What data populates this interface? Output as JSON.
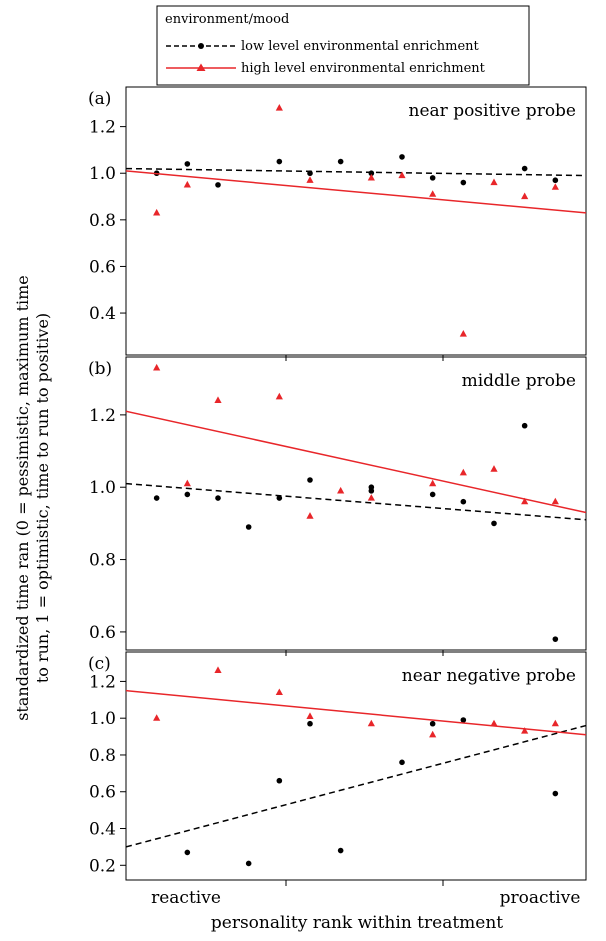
{
  "legend": {
    "title": "environment/mood",
    "entries": [
      {
        "label": "low level environmental enrichment",
        "color": "#000000",
        "marker": "circle",
        "line": "dashed"
      },
      {
        "label": "high level environmental enrichment",
        "color": "#e8262a",
        "marker": "triangle",
        "line": "solid"
      }
    ]
  },
  "ylabel_lines": [
    "standardized time ran (0 = pessimistic, maximum time",
    "to run, 1 = optimistic, time to run to positive)"
  ],
  "xlabel": "personality rank within treatment",
  "x_tick_labels": {
    "left": "reactive",
    "right": "proactive"
  },
  "chart_data": [
    {
      "type": "scatter",
      "panel": "(a)",
      "title": "near positive probe",
      "xlim": [
        0,
        15
      ],
      "ylim": [
        0.22,
        1.37
      ],
      "yticks": [
        0.4,
        0.6,
        0.8,
        1.0,
        1.2
      ],
      "grid": false,
      "series": [
        {
          "name": "low level environmental enrichment",
          "x": [
            1,
            2,
            3,
            5,
            6,
            7,
            8,
            9,
            10,
            11,
            13,
            14
          ],
          "y": [
            1.0,
            1.04,
            0.95,
            1.05,
            1.0,
            1.05,
            1.0,
            1.07,
            0.98,
            0.96,
            1.02,
            0.97
          ],
          "trend": [
            1.02,
            0.99
          ]
        },
        {
          "name": "high level environmental enrichment",
          "x": [
            1,
            2,
            5,
            6,
            8,
            9,
            10,
            11,
            12,
            13,
            14
          ],
          "y": [
            0.83,
            0.95,
            1.28,
            0.97,
            0.98,
            0.99,
            0.91,
            0.31,
            0.96,
            0.9,
            0.94
          ],
          "trend": [
            1.01,
            0.83
          ]
        }
      ]
    },
    {
      "type": "scatter",
      "panel": "(b)",
      "title": "middle probe",
      "xlim": [
        0,
        15
      ],
      "ylim": [
        0.55,
        1.36
      ],
      "yticks": [
        0.6,
        0.8,
        1.0,
        1.2
      ],
      "grid": false,
      "series": [
        {
          "name": "low level environmental enrichment",
          "x": [
            1,
            2,
            3,
            4,
            5,
            6,
            8,
            8,
            10,
            11,
            12,
            13,
            14
          ],
          "y": [
            0.97,
            0.98,
            0.97,
            0.89,
            0.97,
            1.02,
            1.0,
            0.99,
            0.98,
            0.96,
            0.9,
            1.17,
            0.58
          ],
          "trend": [
            1.01,
            0.91
          ]
        },
        {
          "name": "high level environmental enrichment",
          "x": [
            1,
            2,
            3,
            5,
            6,
            7,
            8,
            10,
            11,
            12,
            13,
            14
          ],
          "y": [
            1.33,
            1.01,
            1.24,
            1.25,
            0.92,
            0.99,
            0.97,
            1.01,
            1.04,
            1.05,
            0.96,
            0.96
          ],
          "trend": [
            1.21,
            0.93
          ]
        }
      ]
    },
    {
      "type": "scatter",
      "panel": "(c)",
      "title": "near negative probe",
      "xlim": [
        0,
        15
      ],
      "ylim": [
        0.12,
        1.36
      ],
      "yticks": [
        0.2,
        0.4,
        0.6,
        0.8,
        1.0,
        1.2
      ],
      "grid": false,
      "series": [
        {
          "name": "low level environmental enrichment",
          "x": [
            2,
            4,
            5,
            6,
            7,
            9,
            10,
            11,
            14
          ],
          "y": [
            0.27,
            0.21,
            0.66,
            0.97,
            0.28,
            0.76,
            0.97,
            0.99,
            0.59
          ],
          "trend": [
            0.3,
            0.96
          ]
        },
        {
          "name": "high level environmental enrichment",
          "x": [
            1,
            3,
            5,
            6,
            8,
            10,
            12,
            13,
            14
          ],
          "y": [
            1.0,
            1.26,
            1.14,
            1.01,
            0.97,
            0.91,
            0.97,
            0.93,
            0.97
          ],
          "trend": [
            1.15,
            0.91
          ]
        }
      ]
    }
  ]
}
